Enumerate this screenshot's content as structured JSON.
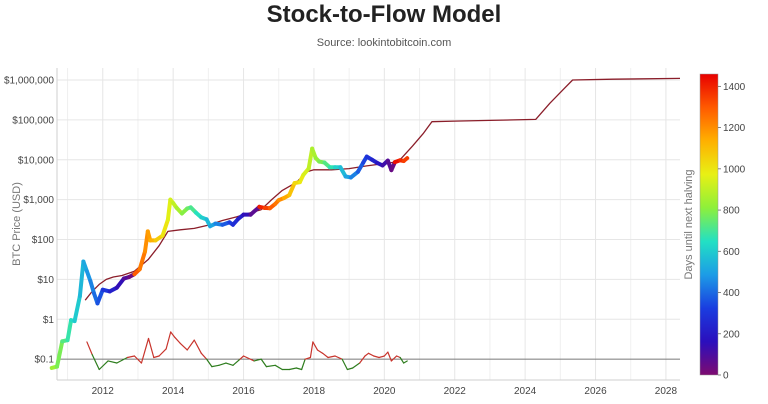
{
  "header": {
    "title": "Stock-to-Flow Model",
    "subtitle": "Source: lookintobitcoin.com"
  },
  "chart_data": {
    "type": "line",
    "title": "Stock-to-Flow Model",
    "subtitle": "Source: lookintobitcoin.com",
    "xlabel": "",
    "ylabel": "BTC Price (USD)",
    "yscale": "log",
    "ylim": [
      0.03,
      2000000
    ],
    "xlim": [
      2010.7,
      2028.4
    ],
    "x_ticks": [
      "2012",
      "2014",
      "2016",
      "2018",
      "2020",
      "2022",
      "2024",
      "2026",
      "2028"
    ],
    "y_ticks": [
      "$0.1",
      "$1",
      "$10",
      "$100",
      "$1,000",
      "$10,000",
      "$100,000",
      "$1,000,000"
    ],
    "grid": true,
    "reference_line": 0.1,
    "colorbar": {
      "label": "Days until next halving",
      "range": [
        0,
        1460
      ],
      "ticks": [
        "0",
        "200",
        "400",
        "600",
        "800",
        "1000",
        "1200",
        "1400"
      ],
      "colors": [
        "#7e0b70",
        "#2b0fbd",
        "#1a3de0",
        "#1c9ce6",
        "#22e0c4",
        "#8ef03a",
        "#e8f014",
        "#ffb000",
        "#ff5a00",
        "#e80000"
      ]
    },
    "series": [
      {
        "key": "price",
        "points": [
          [
            2010.55,
            0.06
          ],
          [
            2010.7,
            0.065
          ],
          [
            2010.85,
            0.28
          ],
          [
            2011.0,
            0.3
          ],
          [
            2011.1,
            0.95
          ],
          [
            2011.2,
            0.9
          ],
          [
            2011.35,
            3.8
          ],
          [
            2011.45,
            28
          ],
          [
            2011.55,
            16
          ],
          [
            2011.65,
            9
          ],
          [
            2011.75,
            4.5
          ],
          [
            2011.85,
            2.5
          ],
          [
            2012.0,
            5.5
          ],
          [
            2012.2,
            5
          ],
          [
            2012.4,
            6.2
          ],
          [
            2012.6,
            10.5
          ],
          [
            2012.75,
            11.5
          ],
          [
            2012.9,
            13.5
          ],
          [
            2013.05,
            18
          ],
          [
            2013.2,
            50
          ],
          [
            2013.28,
            160
          ],
          [
            2013.35,
            95
          ],
          [
            2013.5,
            95
          ],
          [
            2013.7,
            125
          ],
          [
            2013.85,
            310
          ],
          [
            2013.92,
            1000
          ],
          [
            2014.0,
            820
          ],
          [
            2014.1,
            620
          ],
          [
            2014.25,
            450
          ],
          [
            2014.4,
            600
          ],
          [
            2014.5,
            640
          ],
          [
            2014.65,
            470
          ],
          [
            2014.8,
            360
          ],
          [
            2014.95,
            320
          ],
          [
            2015.05,
            215
          ],
          [
            2015.2,
            250
          ],
          [
            2015.4,
            235
          ],
          [
            2015.6,
            270
          ],
          [
            2015.7,
            235
          ],
          [
            2015.85,
            330
          ],
          [
            2016.0,
            420
          ],
          [
            2016.2,
            420
          ],
          [
            2016.45,
            660
          ],
          [
            2016.6,
            620
          ],
          [
            2016.75,
            610
          ],
          [
            2016.9,
            780
          ],
          [
            2017.0,
            970
          ],
          [
            2017.15,
            1100
          ],
          [
            2017.3,
            1300
          ],
          [
            2017.45,
            2600
          ],
          [
            2017.6,
            2750
          ],
          [
            2017.7,
            4200
          ],
          [
            2017.85,
            6000
          ],
          [
            2017.95,
            19000
          ],
          [
            2018.05,
            11000
          ],
          [
            2018.15,
            9000
          ],
          [
            2018.3,
            8500
          ],
          [
            2018.45,
            6500
          ],
          [
            2018.6,
            6500
          ],
          [
            2018.75,
            6500
          ],
          [
            2018.9,
            3800
          ],
          [
            2019.05,
            3600
          ],
          [
            2019.25,
            5000
          ],
          [
            2019.4,
            8500
          ],
          [
            2019.5,
            12000
          ],
          [
            2019.65,
            10000
          ],
          [
            2019.8,
            8300
          ],
          [
            2019.95,
            7200
          ],
          [
            2020.1,
            9500
          ],
          [
            2020.2,
            5500
          ],
          [
            2020.3,
            8700
          ],
          [
            2020.45,
            9700
          ],
          [
            2020.55,
            9300
          ],
          [
            2020.65,
            11000
          ]
        ]
      },
      {
        "key": "model",
        "points": [
          [
            2011.5,
            3
          ],
          [
            2011.7,
            5
          ],
          [
            2011.9,
            7.5
          ],
          [
            2012.1,
            10
          ],
          [
            2012.3,
            11.5
          ],
          [
            2012.55,
            12.5
          ],
          [
            2012.9,
            16
          ],
          [
            2013.3,
            32
          ],
          [
            2013.6,
            70
          ],
          [
            2013.85,
            160
          ],
          [
            2014.2,
            175
          ],
          [
            2014.6,
            190
          ],
          [
            2015.0,
            230
          ],
          [
            2015.4,
            300
          ],
          [
            2015.8,
            370
          ],
          [
            2016.2,
            470
          ],
          [
            2016.5,
            560
          ],
          [
            2016.8,
            1000
          ],
          [
            2017.1,
            1700
          ],
          [
            2017.5,
            2700
          ],
          [
            2017.8,
            5000
          ],
          [
            2018.0,
            5600
          ],
          [
            2018.5,
            5600
          ],
          [
            2019.0,
            6000
          ],
          [
            2019.5,
            7000
          ],
          [
            2020.0,
            8000
          ],
          [
            2020.4,
            9000
          ],
          [
            2020.8,
            22000
          ],
          [
            2021.1,
            45000
          ],
          [
            2021.35,
            90000
          ],
          [
            2022.0,
            93000
          ],
          [
            2023.0,
            97000
          ],
          [
            2024.3,
            103000
          ],
          [
            2024.7,
            260000
          ],
          [
            2025.1,
            600000
          ],
          [
            2025.35,
            1000000
          ],
          [
            2026.5,
            1050000
          ],
          [
            2028.4,
            1100000
          ]
        ]
      },
      {
        "key": "ratio",
        "points": [
          [
            2011.55,
            0.27
          ],
          [
            2011.7,
            0.13
          ],
          [
            2011.9,
            0.055
          ],
          [
            2012.15,
            0.09
          ],
          [
            2012.4,
            0.08
          ],
          [
            2012.7,
            0.11
          ],
          [
            2012.9,
            0.12
          ],
          [
            2013.1,
            0.08
          ],
          [
            2013.3,
            0.33
          ],
          [
            2013.45,
            0.11
          ],
          [
            2013.6,
            0.12
          ],
          [
            2013.8,
            0.18
          ],
          [
            2013.93,
            0.48
          ],
          [
            2014.05,
            0.35
          ],
          [
            2014.2,
            0.25
          ],
          [
            2014.4,
            0.17
          ],
          [
            2014.6,
            0.3
          ],
          [
            2014.8,
            0.14
          ],
          [
            2014.95,
            0.1
          ],
          [
            2015.1,
            0.065
          ],
          [
            2015.3,
            0.07
          ],
          [
            2015.5,
            0.08
          ],
          [
            2015.7,
            0.07
          ],
          [
            2015.9,
            0.1
          ],
          [
            2016.0,
            0.12
          ],
          [
            2016.3,
            0.09
          ],
          [
            2016.5,
            0.1
          ],
          [
            2016.65,
            0.065
          ],
          [
            2016.9,
            0.07
          ],
          [
            2017.1,
            0.055
          ],
          [
            2017.3,
            0.055
          ],
          [
            2017.5,
            0.06
          ],
          [
            2017.65,
            0.055
          ],
          [
            2017.75,
            0.1
          ],
          [
            2017.9,
            0.11
          ],
          [
            2017.97,
            0.27
          ],
          [
            2018.1,
            0.17
          ],
          [
            2018.25,
            0.14
          ],
          [
            2018.4,
            0.11
          ],
          [
            2018.6,
            0.12
          ],
          [
            2018.8,
            0.1
          ],
          [
            2018.95,
            0.055
          ],
          [
            2019.1,
            0.06
          ],
          [
            2019.3,
            0.08
          ],
          [
            2019.45,
            0.12
          ],
          [
            2019.55,
            0.14
          ],
          [
            2019.7,
            0.12
          ],
          [
            2019.85,
            0.11
          ],
          [
            2020.0,
            0.12
          ],
          [
            2020.1,
            0.15
          ],
          [
            2020.2,
            0.09
          ],
          [
            2020.35,
            0.12
          ],
          [
            2020.45,
            0.11
          ],
          [
            2020.55,
            0.08
          ],
          [
            2020.65,
            0.09
          ]
        ]
      }
    ]
  }
}
